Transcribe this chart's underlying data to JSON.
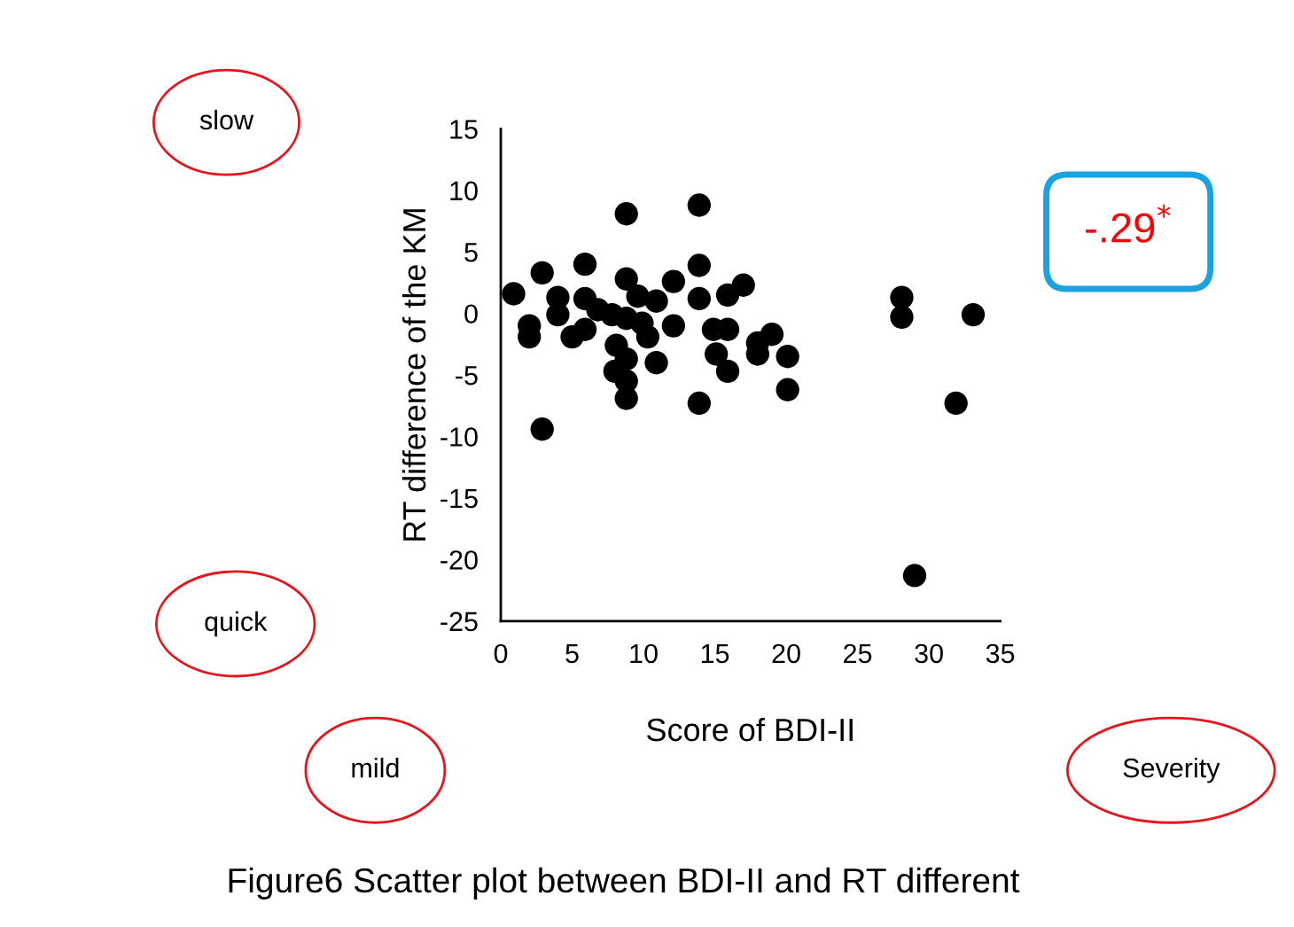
{
  "chart_data": {
    "type": "scatter",
    "title": "Figure6 Scatter plot between BDI-II and RT different",
    "xlabel": "Score of BDI-II",
    "ylabel": "RT difference of the KM",
    "x": [
      0.9,
      2.9,
      2.0,
      2.0,
      2.9,
      4.0,
      4.0,
      5.0,
      5.9,
      5.9,
      5.9,
      6.8,
      7.8,
      8.1,
      8.0,
      8.8,
      8.8,
      8.8,
      8.8,
      8.8,
      8.8,
      9.6,
      9.9,
      10.3,
      10.9,
      10.9,
      12.1,
      12.1,
      13.9,
      13.9,
      13.9,
      13.9,
      14.9,
      15.1,
      15.9,
      15.9,
      15.9,
      17.0,
      18.0,
      18.0,
      19.0,
      20.1,
      20.1,
      28.1,
      28.1,
      29.0,
      31.9,
      33.1
    ],
    "values": [
      1.6,
      3.3,
      -1.0,
      -1.9,
      -9.4,
      1.3,
      -0.1,
      -1.9,
      4.0,
      1.2,
      -1.3,
      0.3,
      -0.1,
      -2.6,
      -4.7,
      8.1,
      2.8,
      -0.4,
      -3.7,
      -5.5,
      -6.9,
      1.4,
      -0.8,
      -1.9,
      1.0,
      -4.0,
      2.6,
      -1.0,
      8.8,
      3.9,
      1.2,
      -7.3,
      -1.3,
      -3.3,
      -1.3,
      -4.7,
      1.5,
      2.3,
      -3.3,
      -2.4,
      -1.7,
      -3.5,
      -6.2,
      1.3,
      -0.3,
      -21.3,
      -7.3,
      -0.1
    ],
    "color": "#000000",
    "marker": "circle",
    "xlim": [
      0,
      35
    ],
    "xticks": [
      0,
      5,
      10,
      15,
      20,
      25,
      30,
      35
    ],
    "ylim": [
      -25,
      15
    ],
    "yticks": [
      -25,
      -20,
      -15,
      -10,
      -5,
      0,
      5,
      10,
      15
    ],
    "grid": false,
    "annotations": [
      "slow",
      "quick",
      "mild",
      "Severity",
      "-.29$^{*}$"
    ]
  }
}
